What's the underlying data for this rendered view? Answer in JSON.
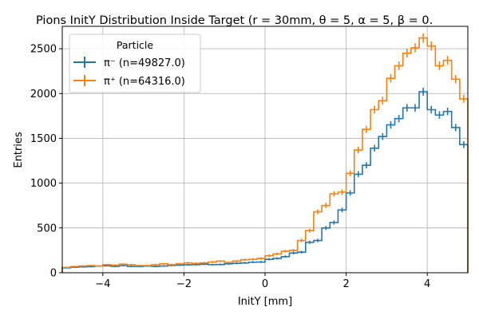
{
  "chart_data": {
    "type": "histogram",
    "title": "Pions InitY Distribution Inside Target (r = 30mm, θ = 5, α = 5, β = 0.",
    "xlabel": "InitY [mm]",
    "ylabel": "Entries",
    "xlim": [
      -5,
      5
    ],
    "ylim": [
      0,
      2750
    ],
    "x_ticks": [
      -4,
      -2,
      0,
      2,
      4
    ],
    "x_tick_labels": [
      "−4",
      "−2",
      "0",
      "2",
      "4"
    ],
    "y_ticks": [
      0,
      500,
      1000,
      1500,
      2000,
      2500
    ],
    "y_tick_labels": [
      "0",
      "500",
      "1000",
      "1500",
      "2000",
      "2500"
    ],
    "grid": true,
    "legend": {
      "title": "Particle",
      "placement": "top-left"
    },
    "bin_edges": {
      "start": -5,
      "step": 0.2,
      "count": 50
    },
    "series": [
      {
        "name": "π⁻ (n=49827.0)",
        "color": "#1f77b4",
        "values": [
          55,
          62,
          65,
          68,
          75,
          78,
          72,
          80,
          72,
          70,
          75,
          72,
          75,
          82,
          85,
          88,
          90,
          95,
          90,
          92,
          100,
          105,
          110,
          118,
          120,
          150,
          160,
          180,
          220,
          230,
          340,
          360,
          500,
          560,
          700,
          890,
          1100,
          1200,
          1390,
          1520,
          1650,
          1720,
          1840,
          1840,
          2020,
          1820,
          1760,
          1800,
          1620,
          1430
        ]
      },
      {
        "name": "π⁺ (n=64316.0)",
        "color": "#ff7f0e",
        "values": [
          60,
          70,
          75,
          80,
          75,
          90,
          85,
          95,
          90,
          80,
          80,
          90,
          100,
          90,
          100,
          110,
          105,
          110,
          120,
          130,
          115,
          130,
          145,
          150,
          160,
          190,
          210,
          240,
          250,
          360,
          470,
          680,
          750,
          880,
          900,
          1110,
          1370,
          1600,
          1820,
          1920,
          2170,
          2310,
          2450,
          2510,
          2620,
          2530,
          2310,
          2370,
          2160,
          1940
        ]
      }
    ]
  }
}
